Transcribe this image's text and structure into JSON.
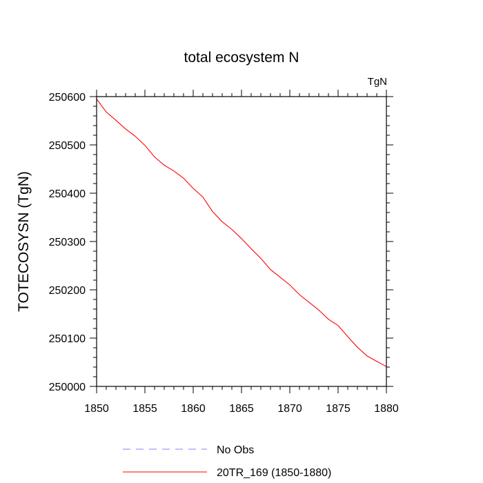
{
  "chart_data": {
    "type": "line",
    "title": "total ecosystem N",
    "units": "TgN",
    "xlabel": "",
    "ylabel": "TOTECOSYSN  (TgN)",
    "xlim": [
      1850,
      1880
    ],
    "ylim": [
      250000,
      250600
    ],
    "x_ticks": [
      1850,
      1855,
      1860,
      1865,
      1870,
      1875,
      1880
    ],
    "y_ticks": [
      250000,
      250100,
      250200,
      250300,
      250400,
      250500,
      250600
    ],
    "legend_position": "bottom",
    "series": [
      {
        "name": "No Obs",
        "color": "#8080ff",
        "dash": "dashed",
        "x": [],
        "y": []
      },
      {
        "name": "20TR_169 (1850-1880)",
        "color": "#ff0000",
        "dash": "solid",
        "x": [
          1850,
          1851,
          1852,
          1853,
          1854,
          1855,
          1856,
          1857,
          1858,
          1859,
          1860,
          1861,
          1862,
          1863,
          1864,
          1865,
          1866,
          1867,
          1868,
          1869,
          1870,
          1871,
          1872,
          1873,
          1874,
          1875,
          1876,
          1877,
          1878,
          1879,
          1880
        ],
        "y": [
          250595,
          250568,
          250551,
          250533,
          250518,
          250499,
          250475,
          250458,
          250446,
          250431,
          250410,
          250392,
          250362,
          250341,
          250325,
          250306,
          250285,
          250265,
          250242,
          250226,
          250210,
          250190,
          250174,
          250158,
          250139,
          250126,
          250103,
          250081,
          250063,
          250052,
          250041
        ]
      }
    ]
  }
}
